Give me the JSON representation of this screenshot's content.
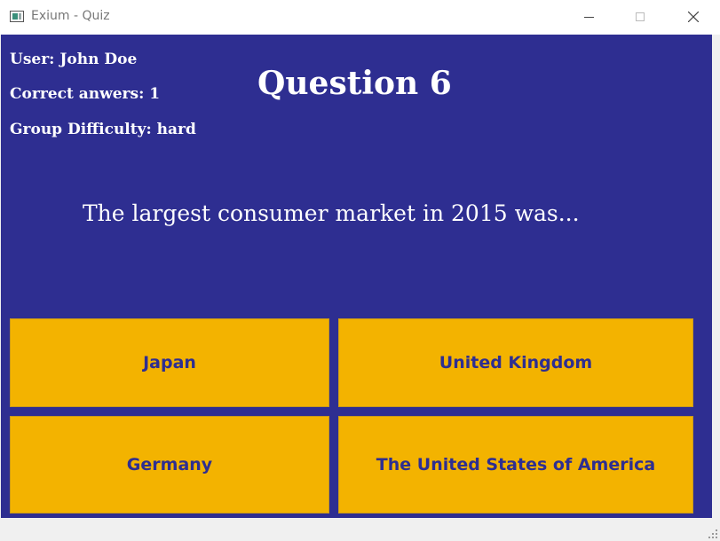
{
  "window": {
    "title": "Exium - Quiz"
  },
  "user_info": {
    "user": "User: John Doe",
    "correct": "Correct anwers: 1",
    "difficulty": "Group Difficulty: hard"
  },
  "question": {
    "title": "Question 6",
    "text": "The largest consumer market in 2015 was..."
  },
  "answers": [
    {
      "label": "Japan"
    },
    {
      "label": "United Kingdom"
    },
    {
      "label": "Germany"
    },
    {
      "label": "The United States of America"
    }
  ],
  "colors": {
    "background": "#2e2e91",
    "answer_button": "#f3b300",
    "answer_text": "#2e2e91",
    "text": "#ffffff"
  }
}
